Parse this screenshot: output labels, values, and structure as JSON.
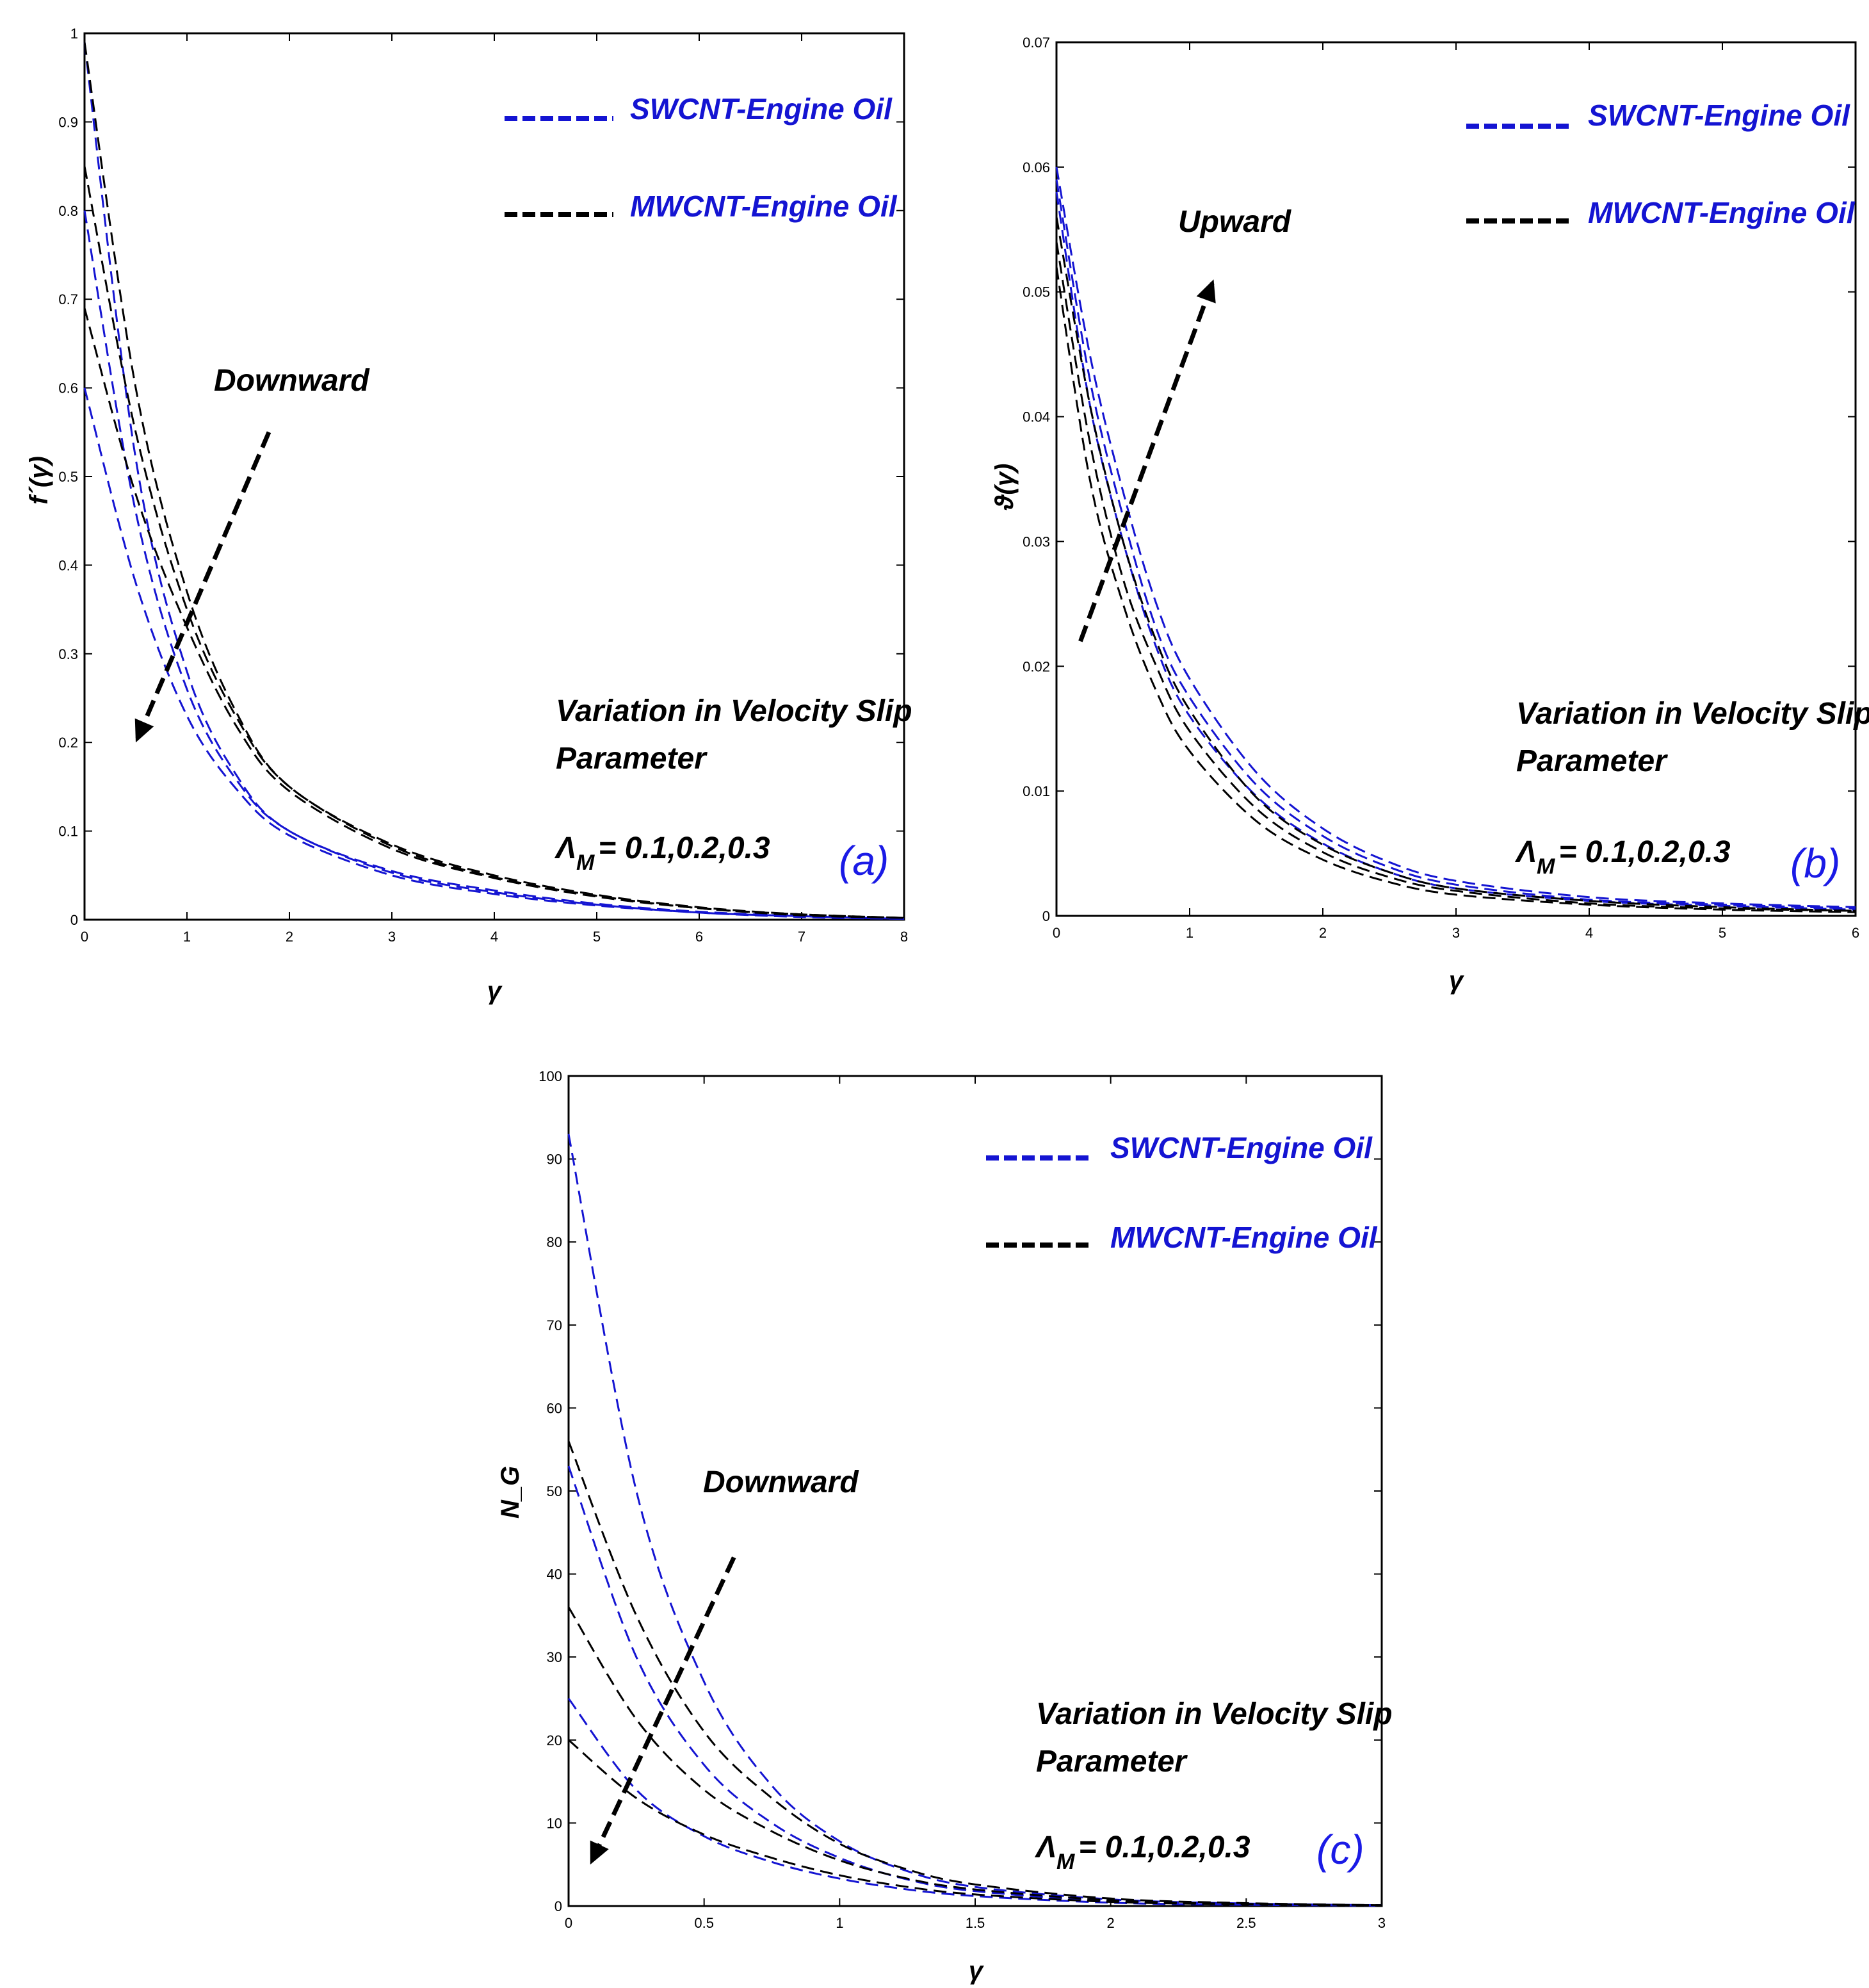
{
  "figure": {
    "colors": {
      "swcnt": "#1414d2",
      "mwcnt": "#000000",
      "panel_label": "#1a1ae6",
      "axis": "#000000"
    },
    "legend": {
      "swcnt": "SWCNT-Engine Oil",
      "mwcnt": "MWCNT-Engine Oil"
    },
    "variation_text": [
      "Variation in Velocity Slip",
      "Parameter"
    ],
    "param_symbol": "Λ",
    "param_subscript": "M",
    "param_values": "= 0.1,0.2,0.3"
  },
  "chart_data": [
    {
      "id": "a",
      "type": "line",
      "panel_label": "(a)",
      "xlabel": "γ",
      "ylabel": "f´(γ)",
      "xlim": [
        0,
        8
      ],
      "ylim": [
        0,
        1
      ],
      "xticks": [
        0,
        1,
        2,
        3,
        4,
        5,
        6,
        7,
        8
      ],
      "yticks": [
        0,
        0.1,
        0.2,
        0.3,
        0.4,
        0.5,
        0.6,
        0.7,
        0.8,
        0.9,
        1
      ],
      "xtick_labels": [
        "0",
        "1",
        "2",
        "3",
        "4",
        "5",
        "6",
        "7",
        "8"
      ],
      "ytick_labels": [
        "0",
        "0.1",
        "0.2",
        "0.3",
        "0.4",
        "0.5",
        "0.6",
        "0.7",
        "0.8",
        "0.9",
        "1"
      ],
      "annotation": "Downward",
      "arrow": {
        "from": [
          1.8,
          0.55
        ],
        "to": [
          0.5,
          0.2
        ]
      },
      "series": [
        {
          "name": "SWCNT-Engine Oil, ΛM = 0.1",
          "group": "swcnt",
          "x": [
            0,
            0.5,
            1,
            1.5,
            2,
            3,
            4,
            5,
            6,
            7,
            8
          ],
          "y": [
            0.99,
            0.52,
            0.28,
            0.16,
            0.1,
            0.055,
            0.033,
            0.018,
            0.009,
            0.004,
            0.001
          ]
        },
        {
          "name": "SWCNT-Engine Oil, ΛM = 0.2",
          "group": "swcnt",
          "x": [
            0,
            0.5,
            1,
            1.5,
            2,
            3,
            4,
            5,
            6,
            7,
            8
          ],
          "y": [
            0.8,
            0.46,
            0.26,
            0.155,
            0.1,
            0.053,
            0.031,
            0.017,
            0.008,
            0.004,
            0.001
          ]
        },
        {
          "name": "SWCNT-Engine Oil, ΛM = 0.3",
          "group": "swcnt",
          "x": [
            0,
            0.5,
            1,
            1.5,
            2,
            3,
            4,
            5,
            6,
            7,
            8
          ],
          "y": [
            0.6,
            0.38,
            0.23,
            0.145,
            0.095,
            0.05,
            0.029,
            0.016,
            0.008,
            0.003,
            0.001
          ]
        },
        {
          "name": "MWCNT-Engine Oil, ΛM = 0.1",
          "group": "mwcnt",
          "x": [
            0,
            0.5,
            1,
            1.5,
            2,
            3,
            4,
            5,
            6,
            7,
            8
          ],
          "y": [
            0.99,
            0.6,
            0.37,
            0.23,
            0.15,
            0.085,
            0.05,
            0.028,
            0.014,
            0.006,
            0.002
          ]
        },
        {
          "name": "MWCNT-Engine Oil, ΛM = 0.2",
          "group": "mwcnt",
          "x": [
            0,
            0.5,
            1,
            1.5,
            2,
            3,
            4,
            5,
            6,
            7,
            8
          ],
          "y": [
            0.85,
            0.55,
            0.35,
            0.225,
            0.15,
            0.083,
            0.048,
            0.027,
            0.013,
            0.006,
            0.002
          ]
        },
        {
          "name": "MWCNT-Engine Oil, ΛM = 0.3",
          "group": "mwcnt",
          "x": [
            0,
            0.5,
            1,
            1.5,
            2,
            3,
            4,
            5,
            6,
            7,
            8
          ],
          "y": [
            0.69,
            0.48,
            0.33,
            0.215,
            0.145,
            0.08,
            0.047,
            0.026,
            0.013,
            0.005,
            0.002
          ]
        }
      ]
    },
    {
      "id": "b",
      "type": "line",
      "panel_label": "(b)",
      "xlabel": "γ",
      "ylabel": "ϑ(γ)",
      "xlim": [
        0,
        6
      ],
      "ylim": [
        0,
        0.07
      ],
      "xticks": [
        0,
        1,
        2,
        3,
        4,
        5,
        6
      ],
      "yticks": [
        0,
        0.01,
        0.02,
        0.03,
        0.04,
        0.05,
        0.06,
        0.07
      ],
      "xtick_labels": [
        "0",
        "1",
        "2",
        "3",
        "4",
        "5",
        "6"
      ],
      "ytick_labels": [
        "0",
        "0.01",
        "0.02",
        "0.03",
        "0.04",
        "0.05",
        "0.06",
        "0.07"
      ],
      "annotation": "Upward",
      "arrow": {
        "from": [
          0.18,
          0.022
        ],
        "to": [
          1.18,
          0.051
        ]
      },
      "series": [
        {
          "name": "SWCNT-Engine Oil, ΛM = 0.1",
          "group": "swcnt",
          "x": [
            0,
            0.25,
            0.5,
            0.75,
            1,
            1.5,
            2,
            2.5,
            3,
            4,
            5,
            6
          ],
          "y": [
            0.06,
            0.045,
            0.034,
            0.025,
            0.019,
            0.0115,
            0.007,
            0.0043,
            0.0028,
            0.0015,
            0.001,
            0.0007
          ]
        },
        {
          "name": "SWCNT-Engine Oil, ΛM = 0.2",
          "group": "swcnt",
          "x": [
            0,
            0.25,
            0.5,
            0.75,
            1,
            1.5,
            2,
            2.5,
            3,
            4,
            5,
            6
          ],
          "y": [
            0.059,
            0.043,
            0.032,
            0.023,
            0.0175,
            0.0105,
            0.0064,
            0.0039,
            0.0025,
            0.0013,
            0.0009,
            0.0006
          ]
        },
        {
          "name": "SWCNT-Engine Oil, ΛM = 0.3",
          "group": "swcnt",
          "x": [
            0,
            0.25,
            0.5,
            0.75,
            1,
            1.5,
            2,
            2.5,
            3,
            4,
            5,
            6
          ],
          "y": [
            0.058,
            0.041,
            0.03,
            0.0215,
            0.016,
            0.0096,
            0.0058,
            0.0035,
            0.0022,
            0.0012,
            0.0008,
            0.0005
          ]
        },
        {
          "name": "MWCNT-Engine Oil, ΛM = 0.1",
          "group": "mwcnt",
          "x": [
            0,
            0.25,
            0.5,
            0.75,
            1,
            1.5,
            2,
            2.5,
            3,
            4,
            5,
            6
          ],
          "y": [
            0.056,
            0.041,
            0.03,
            0.022,
            0.0165,
            0.0095,
            0.0057,
            0.0035,
            0.0022,
            0.0012,
            0.0007,
            0.0004
          ]
        },
        {
          "name": "MWCNT-Engine Oil, ΛM = 0.2",
          "group": "mwcnt",
          "x": [
            0,
            0.25,
            0.5,
            0.75,
            1,
            1.5,
            2,
            2.5,
            3,
            4,
            5,
            6
          ],
          "y": [
            0.054,
            0.038,
            0.027,
            0.02,
            0.0148,
            0.0086,
            0.0051,
            0.0031,
            0.002,
            0.001,
            0.0006,
            0.0004
          ]
        },
        {
          "name": "MWCNT-Engine Oil, ΛM = 0.3",
          "group": "mwcnt",
          "x": [
            0,
            0.25,
            0.5,
            0.75,
            1,
            1.5,
            2,
            2.5,
            3,
            4,
            5,
            6
          ],
          "y": [
            0.052,
            0.035,
            0.025,
            0.018,
            0.0132,
            0.0076,
            0.0045,
            0.0027,
            0.0017,
            0.0009,
            0.0005,
            0.0003
          ]
        }
      ]
    },
    {
      "id": "c",
      "type": "line",
      "panel_label": "(c)",
      "xlabel": "γ",
      "ylabel": "N_G",
      "xlim": [
        0,
        3
      ],
      "ylim": [
        0,
        100
      ],
      "xticks": [
        0,
        0.5,
        1,
        1.5,
        2,
        2.5,
        3
      ],
      "yticks": [
        0,
        10,
        20,
        30,
        40,
        50,
        60,
        70,
        80,
        90,
        100
      ],
      "xtick_labels": [
        "0",
        "0.5",
        "1",
        "1.5",
        "2",
        "2.5",
        "3"
      ],
      "ytick_labels": [
        "0",
        "10",
        "20",
        "30",
        "40",
        "50",
        "60",
        "70",
        "80",
        "90",
        "100"
      ],
      "annotation": "Downward",
      "arrow": {
        "from": [
          0.61,
          42
        ],
        "to": [
          0.08,
          5
        ]
      },
      "series": [
        {
          "name": "SWCNT-Engine Oil, ΛM = 0.1",
          "group": "swcnt",
          "x": [
            0,
            0.25,
            0.5,
            0.75,
            1,
            1.25,
            1.5,
            2,
            2.5,
            3
          ],
          "y": [
            93,
            50,
            27,
            14.5,
            7.8,
            4.2,
            2.3,
            0.8,
            0.3,
            0.1
          ]
        },
        {
          "name": "SWCNT-Engine Oil, ΛM = 0.2",
          "group": "swcnt",
          "x": [
            0,
            0.25,
            0.5,
            0.75,
            1,
            1.25,
            1.5,
            2,
            2.5,
            3
          ],
          "y": [
            53,
            30,
            17,
            10,
            5.8,
            3.2,
            1.8,
            0.6,
            0.2,
            0.1
          ]
        },
        {
          "name": "SWCNT-Engine Oil, ΛM = 0.3",
          "group": "swcnt",
          "x": [
            0,
            0.25,
            0.5,
            0.75,
            1,
            1.25,
            1.5,
            2,
            2.5,
            3
          ],
          "y": [
            25,
            14,
            8.4,
            5.3,
            3.3,
            2,
            1.2,
            0.4,
            0.15,
            0.05
          ]
        },
        {
          "name": "MWCNT-Engine Oil, ΛM = 0.1",
          "group": "mwcnt",
          "x": [
            0,
            0.25,
            0.5,
            0.75,
            1,
            1.25,
            1.5,
            2,
            2.5,
            3
          ],
          "y": [
            56,
            35,
            21,
            13,
            7.5,
            4.4,
            2.6,
            0.9,
            0.35,
            0.1
          ]
        },
        {
          "name": "MWCNT-Engine Oil, ΛM = 0.2",
          "group": "mwcnt",
          "x": [
            0,
            0.25,
            0.5,
            0.75,
            1,
            1.25,
            1.5,
            2,
            2.5,
            3
          ],
          "y": [
            36,
            22.5,
            14,
            9,
            5.5,
            3.3,
            2,
            0.7,
            0.25,
            0.1
          ]
        },
        {
          "name": "MWCNT-Engine Oil, ΛM = 0.3",
          "group": "mwcnt",
          "x": [
            0,
            0.25,
            0.5,
            0.75,
            1,
            1.25,
            1.5,
            2,
            2.5,
            3
          ],
          "y": [
            20,
            13,
            8.6,
            5.8,
            3.7,
            2.3,
            1.4,
            0.5,
            0.2,
            0.05
          ]
        }
      ]
    }
  ]
}
